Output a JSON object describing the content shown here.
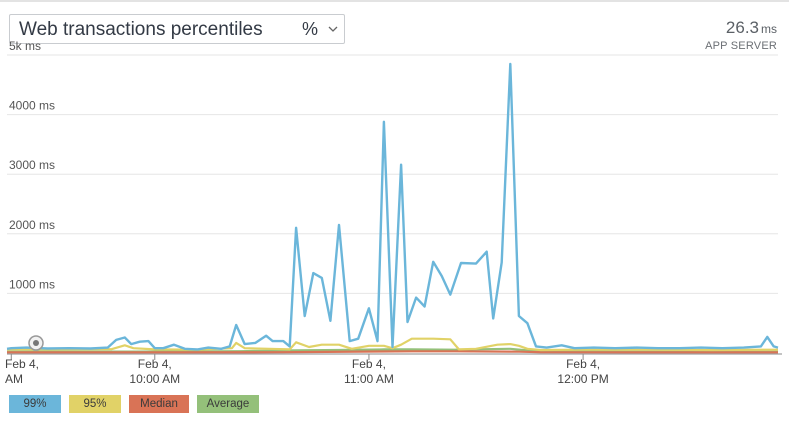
{
  "header": {
    "title": "Web transactions percentiles",
    "unit_selector": "%"
  },
  "readout": {
    "value": "26.3",
    "unit": "ms",
    "label": "APP SERVER"
  },
  "chart_data": {
    "type": "line",
    "y_tick_labels": [
      "5k ms",
      "4000 ms",
      "3000 ms",
      "2000 ms",
      "1000 ms"
    ],
    "y_ticks": [
      5000,
      4000,
      3000,
      2000,
      1000
    ],
    "ylim": [
      0,
      5000
    ],
    "x_tick_labels": [
      {
        "date": "Feb 4,",
        "time": "AM"
      },
      {
        "date": "Feb 4,",
        "time": "10:00 AM"
      },
      {
        "date": "Feb 4,",
        "time": "11:00 AM"
      },
      {
        "date": "Feb 4,",
        "time": "12:00 PM"
      }
    ],
    "x_ticks": [
      9.33,
      10.0,
      11.0,
      12.0
    ],
    "xlim": [
      9.31,
      12.91
    ],
    "grid": true,
    "legend_position": "bottom-left",
    "series": [
      {
        "name": "99%",
        "color": "#6bb6da",
        "points": [
          [
            9.31,
            70
          ],
          [
            9.33,
            80
          ],
          [
            9.4,
            90
          ],
          [
            9.5,
            75
          ],
          [
            9.6,
            80
          ],
          [
            9.7,
            75
          ],
          [
            9.78,
            90
          ],
          [
            9.82,
            220
          ],
          [
            9.86,
            260
          ],
          [
            9.89,
            150
          ],
          [
            9.93,
            190
          ],
          [
            9.97,
            200
          ],
          [
            10.0,
            80
          ],
          [
            10.04,
            80
          ],
          [
            10.09,
            140
          ],
          [
            10.14,
            70
          ],
          [
            10.2,
            60
          ],
          [
            10.25,
            90
          ],
          [
            10.31,
            70
          ],
          [
            10.35,
            110
          ],
          [
            10.38,
            470
          ],
          [
            10.42,
            150
          ],
          [
            10.47,
            170
          ],
          [
            10.52,
            290
          ],
          [
            10.55,
            200
          ],
          [
            10.6,
            200
          ],
          [
            10.63,
            110
          ],
          [
            10.66,
            2100
          ],
          [
            10.7,
            620
          ],
          [
            10.74,
            1340
          ],
          [
            10.78,
            1260
          ],
          [
            10.82,
            540
          ],
          [
            10.86,
            2150
          ],
          [
            10.91,
            200
          ],
          [
            10.95,
            240
          ],
          [
            11.0,
            750
          ],
          [
            11.04,
            200
          ],
          [
            11.07,
            3880
          ],
          [
            11.11,
            100
          ],
          [
            11.15,
            3160
          ],
          [
            11.18,
            520
          ],
          [
            11.22,
            930
          ],
          [
            11.26,
            780
          ],
          [
            11.3,
            1530
          ],
          [
            11.34,
            1290
          ],
          [
            11.38,
            980
          ],
          [
            11.43,
            1510
          ],
          [
            11.5,
            1500
          ],
          [
            11.55,
            1700
          ],
          [
            11.58,
            580
          ],
          [
            11.62,
            1520
          ],
          [
            11.66,
            4850
          ],
          [
            11.7,
            620
          ],
          [
            11.74,
            500
          ],
          [
            11.78,
            110
          ],
          [
            11.83,
            90
          ],
          [
            11.9,
            130
          ],
          [
            11.96,
            80
          ],
          [
            12.05,
            90
          ],
          [
            12.15,
            80
          ],
          [
            12.25,
            90
          ],
          [
            12.35,
            80
          ],
          [
            12.45,
            80
          ],
          [
            12.55,
            90
          ],
          [
            12.65,
            80
          ],
          [
            12.75,
            90
          ],
          [
            12.83,
            110
          ],
          [
            12.86,
            270
          ],
          [
            12.89,
            110
          ],
          [
            12.91,
            90
          ]
        ]
      },
      {
        "name": "95%",
        "color": "#e1d267",
        "points": [
          [
            9.31,
            60
          ],
          [
            9.5,
            60
          ],
          [
            9.8,
            65
          ],
          [
            9.86,
            130
          ],
          [
            9.9,
            80
          ],
          [
            10.0,
            60
          ],
          [
            10.2,
            55
          ],
          [
            10.36,
            80
          ],
          [
            10.38,
            170
          ],
          [
            10.42,
            80
          ],
          [
            10.63,
            60
          ],
          [
            10.66,
            180
          ],
          [
            10.72,
            100
          ],
          [
            10.78,
            140
          ],
          [
            10.86,
            140
          ],
          [
            10.92,
            70
          ],
          [
            11.0,
            120
          ],
          [
            11.07,
            120
          ],
          [
            11.11,
            80
          ],
          [
            11.15,
            140
          ],
          [
            11.2,
            240
          ],
          [
            11.3,
            240
          ],
          [
            11.38,
            230
          ],
          [
            11.42,
            60
          ],
          [
            11.5,
            70
          ],
          [
            11.6,
            140
          ],
          [
            11.66,
            150
          ],
          [
            11.7,
            120
          ],
          [
            11.74,
            70
          ],
          [
            11.8,
            50
          ],
          [
            12.0,
            55
          ],
          [
            12.3,
            55
          ],
          [
            12.6,
            50
          ],
          [
            12.91,
            55
          ]
        ]
      },
      {
        "name": "Median",
        "color": "#d97356",
        "points": [
          [
            9.31,
            12
          ],
          [
            10.0,
            12
          ],
          [
            10.6,
            14
          ],
          [
            10.8,
            18
          ],
          [
            11.05,
            25
          ],
          [
            11.2,
            28
          ],
          [
            11.4,
            28
          ],
          [
            11.7,
            22
          ],
          [
            11.8,
            14
          ],
          [
            12.2,
            12
          ],
          [
            12.91,
            12
          ]
        ]
      },
      {
        "name": "Average",
        "color": "#94c07a",
        "points": [
          [
            9.31,
            22
          ],
          [
            9.9,
            24
          ],
          [
            10.4,
            30
          ],
          [
            10.66,
            45
          ],
          [
            10.86,
            50
          ],
          [
            11.07,
            60
          ],
          [
            11.2,
            60
          ],
          [
            11.4,
            55
          ],
          [
            11.66,
            70
          ],
          [
            11.75,
            40
          ],
          [
            11.85,
            25
          ],
          [
            12.2,
            22
          ],
          [
            12.91,
            22
          ]
        ]
      }
    ]
  },
  "legend": [
    {
      "label": "99%",
      "color": "#6bb6da"
    },
    {
      "label": "95%",
      "color": "#e1d267"
    },
    {
      "label": "Median",
      "color": "#d97356"
    },
    {
      "label": "Average",
      "color": "#94c07a"
    }
  ]
}
